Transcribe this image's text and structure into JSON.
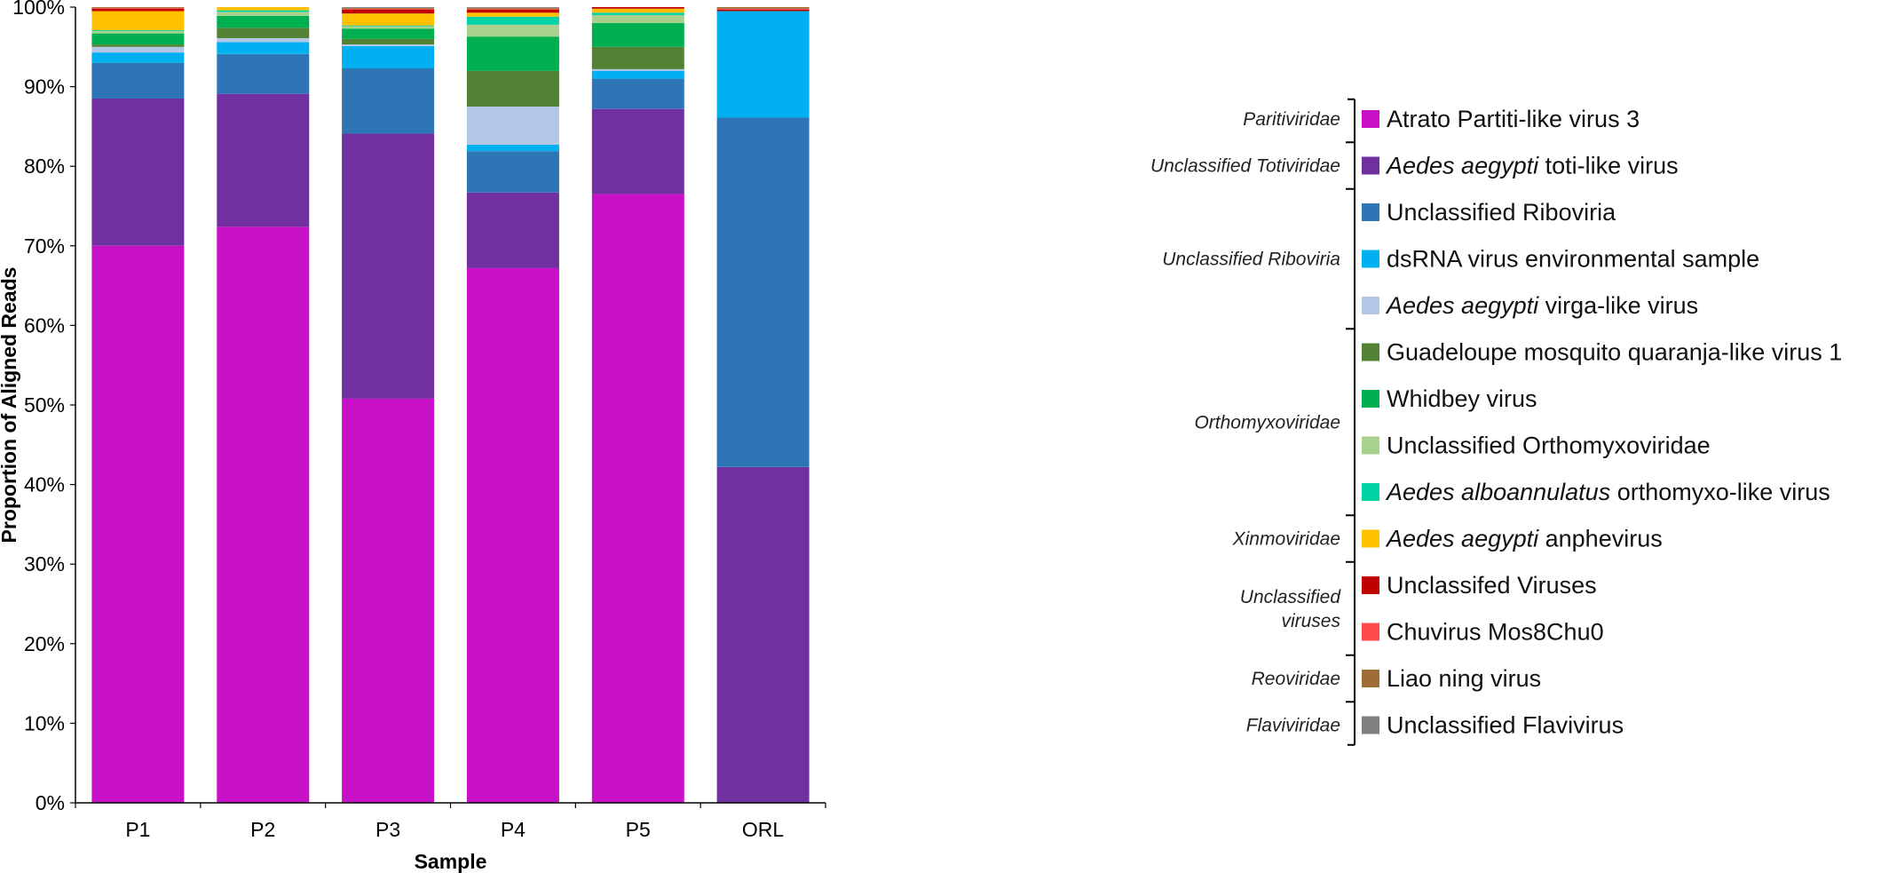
{
  "chart_data": {
    "type": "bar",
    "stacked": true,
    "xlabel": "Sample",
    "ylabel": "Proportion of Aligned Reads",
    "ylim": [
      0,
      100
    ],
    "y_ticks": [
      "0%",
      "10%",
      "20%",
      "30%",
      "40%",
      "50%",
      "60%",
      "70%",
      "80%",
      "90%",
      "100%"
    ],
    "categories": [
      "P1",
      "P2",
      "P3",
      "P4",
      "P5",
      "ORL"
    ],
    "series": [
      {
        "name": "Atrato Partiti-like virus 3",
        "family": "Partitiviridae",
        "color": "#c710c7",
        "values": [
          70.0,
          72.4,
          50.8,
          67.2,
          76.5,
          0.0
        ]
      },
      {
        "name_italic": "Aedes aegypti",
        "name_rest": " toti-like virus",
        "family": "Unclassified Totiviridae",
        "color": "#7030a0",
        "values": [
          18.5,
          16.7,
          33.3,
          9.5,
          10.7,
          42.2
        ]
      },
      {
        "name": "Unclassified Riboviria",
        "family": "Unclassified Riboviria",
        "color": "#2e75b6",
        "values": [
          4.5,
          5.0,
          8.2,
          5.2,
          3.8,
          43.9
        ]
      },
      {
        "name": "dsRNA virus environmental sample",
        "family": "Unclassified Riboviria",
        "color": "#00b0f0",
        "values": [
          1.3,
          1.5,
          2.8,
          0.8,
          1.0,
          13.4
        ]
      },
      {
        "name_italic": "Aedes aegypti",
        "name_rest": " virga-like virus",
        "family": "Unclassified Riboviria",
        "color": "#b4c7e7",
        "values": [
          0.7,
          0.5,
          0.2,
          4.8,
          0.2,
          0.0
        ]
      },
      {
        "name": "Guadeloupe mosquito quaranja-like virus 1",
        "family": "Orthomyxoviridae",
        "color": "#548235",
        "values": [
          0.3,
          1.3,
          0.7,
          4.5,
          2.8,
          0.0
        ]
      },
      {
        "name": "Whidbey virus",
        "family": "Orthomyxoviridae",
        "color": "#00b050",
        "values": [
          1.4,
          1.5,
          1.3,
          4.3,
          3.0,
          0.0
        ]
      },
      {
        "name": "Unclassified Orthomyxoviridae",
        "family": "Orthomyxoviridae",
        "color": "#a9d18e",
        "values": [
          0.3,
          0.5,
          0.3,
          1.5,
          1.0,
          0.0
        ]
      },
      {
        "name_italic": "Aedes alboannulatus",
        "name_rest": " orthomyxo-like virus",
        "family": "Orthomyxoviridae",
        "color": "#00d4a4",
        "values": [
          0.1,
          0.2,
          0.1,
          1.0,
          0.3,
          0.0
        ]
      },
      {
        "name_italic": "Aedes aegypti",
        "name_rest": " anphevirus",
        "family": "Xinmoviridae",
        "color": "#ffc000",
        "values": [
          2.4,
          0.4,
          1.5,
          0.5,
          0.5,
          0.0
        ]
      },
      {
        "name": "Unclassifed Viruses",
        "family": "Unclassified viruses",
        "color": "#c00000",
        "values": [
          0.3,
          0.3,
          0.5,
          0.4,
          0.3,
          0.2
        ]
      },
      {
        "name": "Chuvirus Mos8Chu0",
        "family": "Unclassified viruses",
        "color": "#ff4b4b",
        "values": [
          0.1,
          0.3,
          0.1,
          0.1,
          0.1,
          0.1
        ]
      },
      {
        "name": "Liao ning virus",
        "family": "Reoviridae",
        "color": "#9e6a35",
        "values": [
          0.1,
          0.2,
          0.1,
          0.1,
          0.1,
          0.2
        ]
      },
      {
        "name": "Unclassified Flavivirus",
        "family": "Flaviviridae",
        "color": "#808080",
        "values": [
          0.1,
          0.2,
          0.4,
          0.1,
          0.1,
          0.0
        ]
      }
    ],
    "legend": {
      "placement": "right",
      "groups": [
        {
          "label_lines": [
            "Paritiviridae"
          ],
          "items": [
            0
          ]
        },
        {
          "label_lines": [
            "Unclassified Totiviridae"
          ],
          "items": [
            1
          ]
        },
        {
          "label_lines": [
            "Unclassified Riboviria"
          ],
          "items": [
            2,
            3,
            4
          ]
        },
        {
          "label_lines": [
            "Orthomyxoviridae"
          ],
          "items": [
            5,
            6,
            7,
            8
          ]
        },
        {
          "label_lines": [
            "Xinmoviridae"
          ],
          "items": [
            9
          ]
        },
        {
          "label_lines": [
            "Unclassified",
            "viruses"
          ],
          "items": [
            10,
            11
          ]
        },
        {
          "label_lines": [
            "Reoviridae"
          ],
          "items": [
            12
          ]
        },
        {
          "label_lines": [
            "Flaviviridae"
          ],
          "items": [
            13
          ]
        }
      ]
    },
    "grid": false
  }
}
